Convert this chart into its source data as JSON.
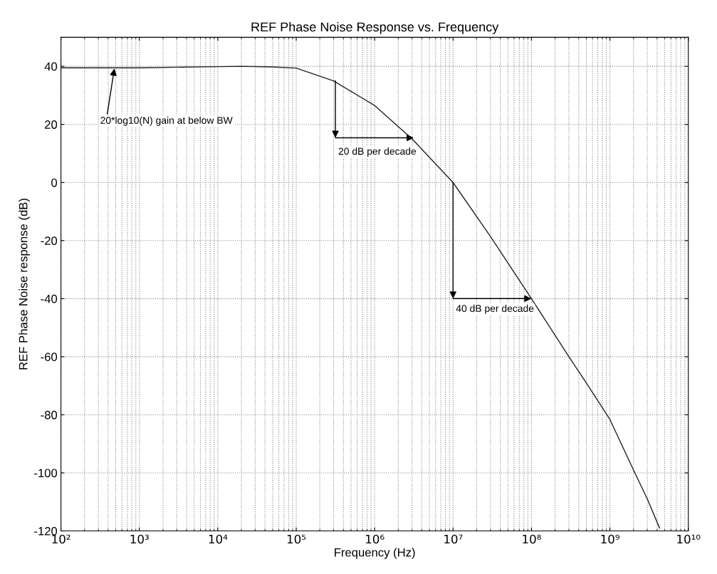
{
  "chart_data": {
    "type": "line",
    "title": "REF Phase Noise Response vs. Frequency",
    "xlabel": "Frequency (Hz)",
    "ylabel": "REF Phase Noise response (dB)",
    "log": "x",
    "grid": true,
    "legend": false,
    "xlim": [
      100,
      10000000000
    ],
    "xticks": [
      {
        "value": 100,
        "label": "10²"
      },
      {
        "value": 1000,
        "label": "10³"
      },
      {
        "value": 10000,
        "label": "10⁴"
      },
      {
        "value": 100000,
        "label": "10⁵"
      },
      {
        "value": 1000000,
        "label": "10⁶"
      },
      {
        "value": 10000000,
        "label": "10⁷"
      },
      {
        "value": 100000000,
        "label": "10⁸"
      },
      {
        "value": 1000000000,
        "label": "10⁹"
      },
      {
        "value": 10000000000,
        "label": "10¹⁰"
      }
    ],
    "ylim": [
      -120,
      50
    ],
    "yticks": [
      -120,
      -100,
      -80,
      -60,
      -40,
      -20,
      0,
      20,
      40
    ],
    "series": [
      {
        "color": "#222222",
        "x": [
          100,
          1000,
          3000,
          10000,
          20000,
          50000,
          100000,
          300000,
          1000000,
          3000000,
          10000000,
          30000000,
          100000000,
          300000000,
          500000000,
          1000000000,
          2000000000,
          3000000000,
          4300000000
        ],
        "values": [
          39.5,
          39.5,
          39.7,
          39.9,
          40,
          39.8,
          39.4,
          35,
          26.5,
          15,
          0,
          -18.6,
          -40,
          -60,
          -69,
          -81.6,
          -99,
          -109,
          -119
        ]
      }
    ],
    "annotations": [
      {
        "text": "20*log10(N) gain at below BW",
        "x": 480,
        "y": 39.5
      },
      {
        "text": "20 dB per decade",
        "x": 316000,
        "y": 35
      },
      {
        "text": "40 dB per decade",
        "x": 10000000,
        "y": 0
      }
    ]
  }
}
